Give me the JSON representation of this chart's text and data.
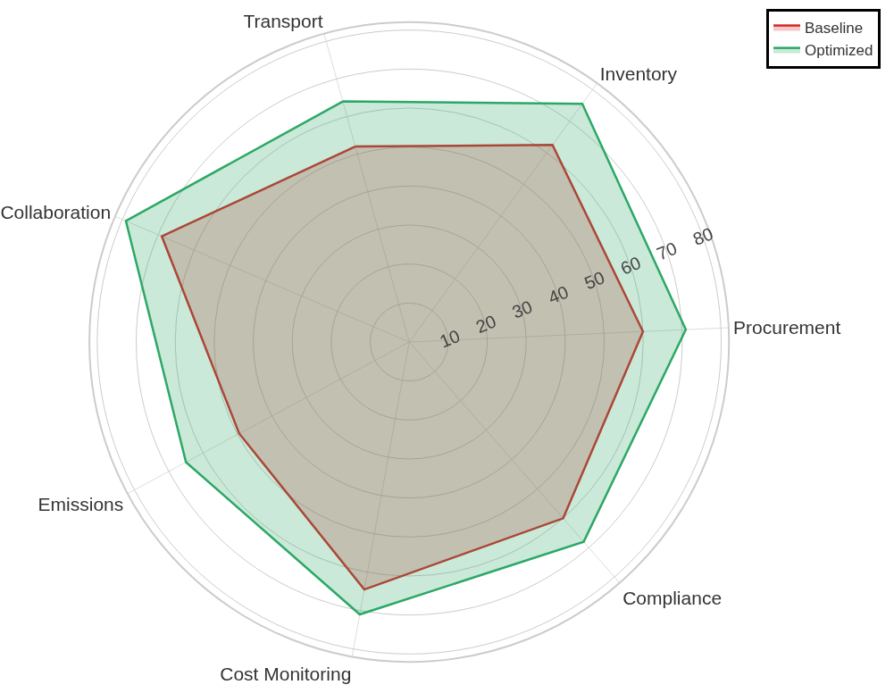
{
  "chart_data": {
    "type": "radar",
    "categories": [
      "Transport",
      "Inventory",
      "Procurement",
      "Compliance",
      "Cost Monitoring",
      "Emissions",
      "Collaboration"
    ],
    "series": [
      {
        "name": "Baseline",
        "color": "#d62728",
        "values": [
          52,
          62.5,
          60,
          60,
          64.5,
          49.5,
          69
        ]
      },
      {
        "name": "Optimized",
        "color": "#2ca866",
        "values": [
          64,
          75.5,
          71,
          68,
          71,
          65,
          79
        ]
      }
    ],
    "ylim": [
      0,
      82
    ],
    "yticks": [
      10,
      20,
      30,
      40,
      50,
      60,
      70,
      80
    ],
    "grid": true,
    "legend": "top right"
  }
}
